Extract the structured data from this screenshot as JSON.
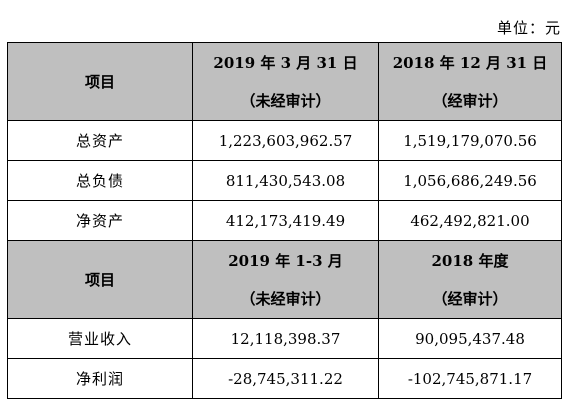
{
  "unit": "单位：元",
  "section1": {
    "header": {
      "item": "项目",
      "col1": "2019 年 3 月 31 日",
      "col1_note": "（未经审计）",
      "col2": "2018 年 12 月 31 日",
      "col2_note": "（经审计）"
    },
    "rows": [
      {
        "label": "总资产",
        "v1": "1,223,603,962.57",
        "v2": "1,519,179,070.56"
      },
      {
        "label": "总负债",
        "v1": "811,430,543.08",
        "v2": "1,056,686,249.56"
      },
      {
        "label": "净资产",
        "v1": "412,173,419.49",
        "v2": "462,492,821.00"
      }
    ]
  },
  "section2": {
    "header": {
      "item": "项目",
      "col1": "2019 年 1-3 月",
      "col1_note": "（未经审计）",
      "col2": "2018 年度",
      "col2_note": "（经审计）"
    },
    "rows": [
      {
        "label": "营业收入",
        "v1": "12,118,398.37",
        "v2": "90,095,437.48"
      },
      {
        "label": "净利润",
        "v1": "-28,745,311.22",
        "v2": "-102,745,871.17"
      }
    ]
  }
}
